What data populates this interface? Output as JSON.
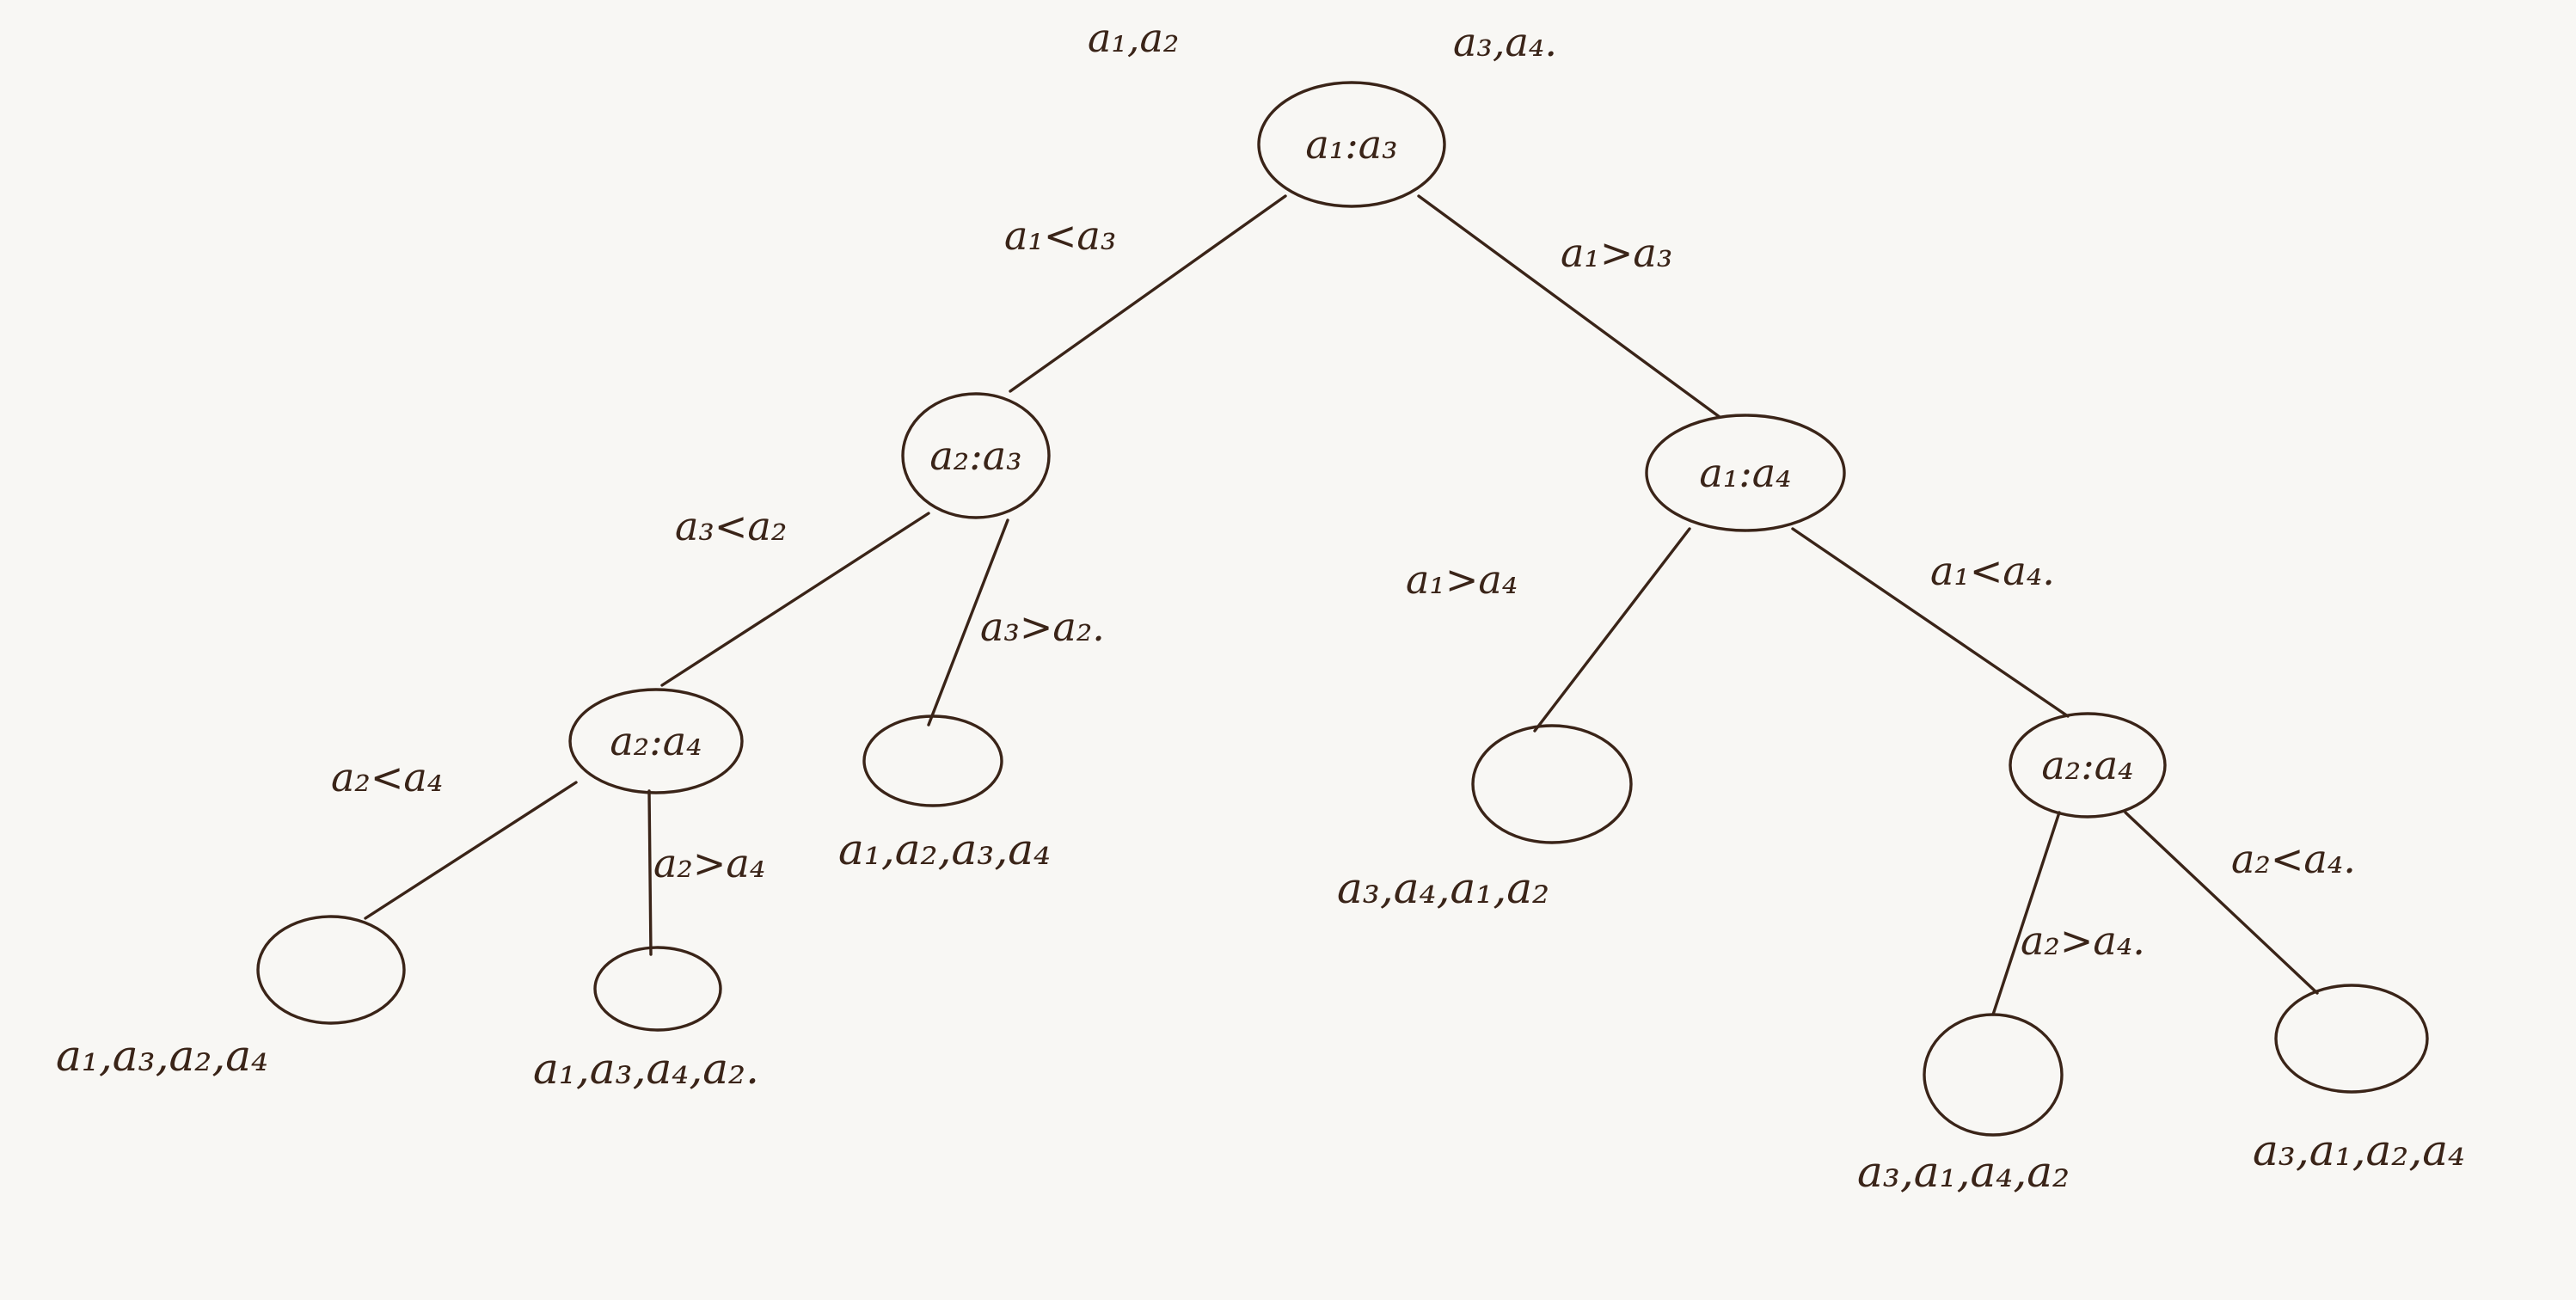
{
  "diagram": {
    "top_labels": {
      "left": "a₁,a₂",
      "right": "a₃,a₄."
    },
    "nodes": {
      "root": "a₁:a₃",
      "left": "a₂:a₃",
      "right": "a₁:a₄",
      "left_left": "a₂:a₄",
      "right_right": "a₂:a₄"
    },
    "edges": {
      "root_left": "a₁<a₃",
      "root_right": "a₁>a₃",
      "left_left": "a₃<a₂",
      "left_right": "a₃>a₂.",
      "ll_left": "a₂<a₄",
      "ll_right": "a₂>a₄",
      "right_left": "a₁>a₄",
      "right_right": "a₁<a₄.",
      "rr_left": "a₂>a₄.",
      "rr_right": "a₂<a₄."
    },
    "leaves": {
      "leaf1": "a₁,a₃,a₂,a₄",
      "leaf2": "a₁,a₃,a₄,a₂.",
      "leaf3": "a₁,a₂,a₃,a₄",
      "leaf4": "a₃,a₄,a₁,a₂",
      "leaf5": "a₃,a₁,a₄,a₂",
      "leaf6": "a₃,a₁,a₂,a₄"
    }
  }
}
